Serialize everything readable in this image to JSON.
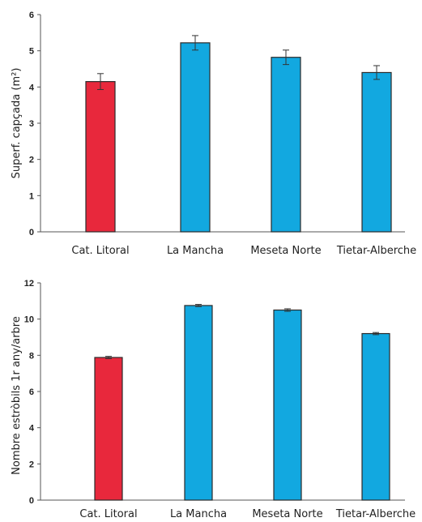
{
  "chart_data": [
    {
      "type": "bar",
      "title": "",
      "xlabel": "",
      "ylabel": "Superf. capçada (m²)",
      "categories": [
        "Cat. Litoral",
        "La Mancha",
        "Meseta Norte",
        "Tietar-Alberche"
      ],
      "values": [
        4.15,
        5.22,
        4.82,
        4.4
      ],
      "errors": [
        0.22,
        0.2,
        0.2,
        0.19
      ],
      "ylim": [
        0,
        6
      ],
      "yticks": [
        "0",
        "1",
        "2",
        "3",
        "4",
        "5",
        "6"
      ],
      "colors": [
        "#e8283c",
        "#12a8e0",
        "#12a8e0",
        "#12a8e0"
      ],
      "grid": false,
      "legend": "none"
    },
    {
      "type": "bar",
      "title": "",
      "xlabel": "",
      "ylabel": "Nombre estròbils 1r any/arbre",
      "categories": [
        "Cat. Litoral",
        "La Mancha",
        "Meseta Norte",
        "Tietar-Alberche"
      ],
      "values": [
        7.88,
        10.75,
        10.5,
        9.2
      ],
      "errors": [
        0.06,
        0.06,
        0.07,
        0.06
      ],
      "ylim": [
        0,
        12
      ],
      "yticks": [
        "0",
        "2",
        "4",
        "6",
        "8",
        "10",
        "12"
      ],
      "colors": [
        "#e8283c",
        "#12a8e0",
        "#12a8e0",
        "#12a8e0"
      ],
      "grid": false,
      "legend": "none"
    }
  ]
}
